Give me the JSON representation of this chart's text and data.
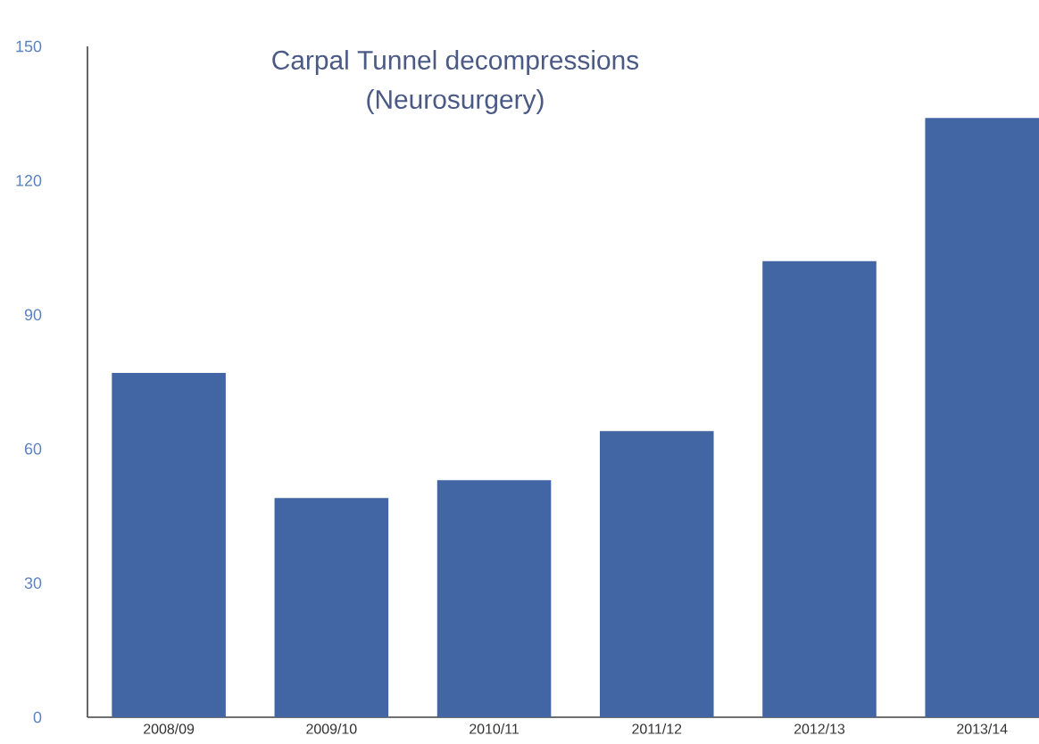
{
  "chart_data": {
    "type": "bar",
    "title": "Carpal Tunnel decompressions",
    "subtitle": "(Neurosurgery)",
    "categories": [
      "2008/09",
      "2009/10",
      "2010/11",
      "2011/12",
      "2012/13",
      "2013/14"
    ],
    "values": [
      77,
      49,
      53,
      64,
      102,
      134
    ],
    "color": "#4266a3",
    "ylim": [
      0,
      150
    ],
    "yticks": [
      0,
      30,
      60,
      90,
      120,
      150
    ]
  }
}
